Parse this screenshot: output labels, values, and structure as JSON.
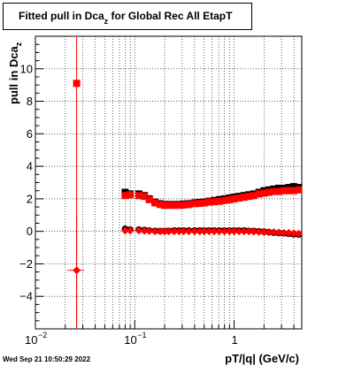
{
  "title": {
    "text_before": "Fitted pull in Dca",
    "subscript": "z",
    "text_after": " for Global Rec All EtapT"
  },
  "timestamp": "Wed Sep 21 10:50:29 2022",
  "xaxis": {
    "label": "pT/|q| (GeV/c)",
    "tick_labels": [
      {
        "base": "10",
        "exp": "−2"
      },
      {
        "base": "10",
        "exp": "−1"
      },
      {
        "base": "1",
        "exp": ""
      }
    ]
  },
  "yaxis": {
    "label_main": "pull in Dca",
    "label_sub": "z",
    "tick_labels": [
      "−4",
      "−2",
      "0",
      "2",
      "4",
      "6",
      "8",
      "10"
    ]
  },
  "colors": {
    "black_series": "#000000",
    "red_series": "#ff0000",
    "grid": "#000000"
  },
  "chart_data": {
    "type": "scatter",
    "xscale": "log",
    "xlim": [
      0.01,
      4.8
    ],
    "ylim": [
      -6,
      12
    ],
    "grid": true,
    "xlabel": "pT/|q| (GeV/c)",
    "ylabel": "pull in Dca_z",
    "series": [
      {
        "color": "#000000",
        "marker": "square",
        "x": [
          0.08,
          0.09,
          0.11,
          0.125,
          0.14,
          0.16,
          0.18,
          0.2,
          0.22,
          0.25,
          0.28,
          0.31,
          0.35,
          0.4,
          0.45,
          0.5,
          0.56,
          0.63,
          0.71,
          0.8,
          0.9,
          1.0,
          1.12,
          1.26,
          1.41,
          1.58,
          1.78,
          2.0,
          2.24,
          2.51,
          2.82,
          3.16,
          3.55,
          3.98,
          4.47
        ],
        "y": [
          2.4,
          2.3,
          2.3,
          2.2,
          2.0,
          1.8,
          1.7,
          1.65,
          1.65,
          1.65,
          1.65,
          1.68,
          1.7,
          1.75,
          1.78,
          1.8,
          1.85,
          1.9,
          1.95,
          2.0,
          2.05,
          2.1,
          2.15,
          2.2,
          2.25,
          2.3,
          2.4,
          2.5,
          2.55,
          2.6,
          2.65,
          2.65,
          2.7,
          2.75,
          2.7
        ]
      },
      {
        "color": "#000000",
        "marker": "circle",
        "x": [
          0.08,
          0.09,
          0.11,
          0.125,
          0.14,
          0.16,
          0.18,
          0.2,
          0.22,
          0.25,
          0.28,
          0.31,
          0.35,
          0.4,
          0.45,
          0.5,
          0.56,
          0.63,
          0.71,
          0.8,
          0.9,
          1.0,
          1.12,
          1.26,
          1.41,
          1.58,
          1.78,
          2.0,
          2.24,
          2.51,
          2.82,
          3.16,
          3.55,
          3.98,
          4.47
        ],
        "y": [
          0.15,
          0.1,
          0.1,
          0.08,
          0.05,
          0.03,
          0.02,
          0.02,
          0.03,
          0.05,
          0.05,
          0.05,
          0.05,
          0.05,
          0.05,
          0.05,
          0.05,
          0.05,
          0.05,
          0.05,
          0.05,
          0.05,
          0.05,
          0.05,
          0.03,
          0.02,
          0.0,
          -0.02,
          -0.05,
          -0.08,
          -0.1,
          -0.12,
          -0.15,
          -0.18,
          -0.2
        ]
      },
      {
        "color": "#ff0000",
        "marker": "square",
        "x": [
          0.026,
          0.08,
          0.09,
          0.11,
          0.125,
          0.14,
          0.16,
          0.18,
          0.2,
          0.22,
          0.25,
          0.28,
          0.31,
          0.35,
          0.4,
          0.45,
          0.5,
          0.56,
          0.63,
          0.71,
          0.8,
          0.9,
          1.0,
          1.12,
          1.26,
          1.41,
          1.58,
          1.78,
          2.0,
          2.24,
          2.51,
          2.82,
          3.16,
          3.55,
          3.98,
          4.47
        ],
        "y": [
          9.1,
          2.2,
          2.25,
          2.2,
          2.15,
          1.95,
          1.75,
          1.65,
          1.6,
          1.6,
          1.6,
          1.6,
          1.62,
          1.65,
          1.7,
          1.72,
          1.75,
          1.8,
          1.82,
          1.85,
          1.9,
          1.95,
          2.0,
          2.05,
          2.1,
          2.15,
          2.2,
          2.3,
          2.35,
          2.4,
          2.45,
          2.45,
          2.5,
          2.5,
          2.5,
          2.55
        ],
        "xerr": [
          [
            0.024,
            0.028
          ],
          null,
          null,
          null,
          null,
          null,
          null,
          null,
          null,
          null,
          null,
          null,
          null,
          null,
          null,
          null,
          null,
          null,
          null,
          null,
          null,
          null,
          null,
          null,
          null,
          null,
          null,
          null,
          null,
          null,
          null,
          null,
          null,
          null,
          null,
          null
        ],
        "yerr": [
          [
            -6,
            12
          ],
          null,
          null,
          null,
          null,
          null,
          null,
          null,
          null,
          null,
          null,
          null,
          null,
          null,
          null,
          null,
          null,
          null,
          null,
          null,
          null,
          null,
          null,
          null,
          null,
          null,
          null,
          null,
          null,
          null,
          null,
          null,
          null,
          null,
          null,
          null
        ]
      },
      {
        "color": "#ff0000",
        "marker": "diamond",
        "x": [
          0.026,
          0.08,
          0.09,
          0.11,
          0.125,
          0.14,
          0.16,
          0.18,
          0.2,
          0.22,
          0.25,
          0.28,
          0.31,
          0.35,
          0.4,
          0.45,
          0.5,
          0.56,
          0.63,
          0.71,
          0.8,
          0.9,
          1.0,
          1.12,
          1.26,
          1.41,
          1.58,
          1.78,
          2.0,
          2.24,
          2.51,
          2.82,
          3.16,
          3.55,
          3.98,
          4.47
        ],
        "y": [
          -2.4,
          0.05,
          0.05,
          0.05,
          0.03,
          0.02,
          0.0,
          0.0,
          0.0,
          0.0,
          0.0,
          0.0,
          0.0,
          0.0,
          0.0,
          0.0,
          0.0,
          0.0,
          0.0,
          0.0,
          0.0,
          0.0,
          0.0,
          0.0,
          0.0,
          0.0,
          -0.02,
          -0.03,
          -0.05,
          -0.05,
          -0.05,
          -0.08,
          -0.1,
          -0.1,
          -0.12,
          -0.15
        ],
        "xerr": [
          [
            0.021,
            0.031
          ],
          null,
          null,
          null,
          null,
          null,
          null,
          null,
          null,
          null,
          null,
          null,
          null,
          null,
          null,
          null,
          null,
          null,
          null,
          null,
          null,
          null,
          null,
          null,
          null,
          null,
          null,
          null,
          null,
          null,
          null,
          null,
          null,
          null,
          null,
          null
        ],
        "yerr": [
          [
            -6,
            1.0
          ],
          null,
          null,
          null,
          null,
          null,
          null,
          null,
          null,
          null,
          null,
          null,
          null,
          null,
          null,
          null,
          null,
          null,
          null,
          null,
          null,
          null,
          null,
          null,
          null,
          null,
          null,
          null,
          null,
          null,
          null,
          null,
          null,
          null,
          null,
          null
        ]
      }
    ]
  }
}
